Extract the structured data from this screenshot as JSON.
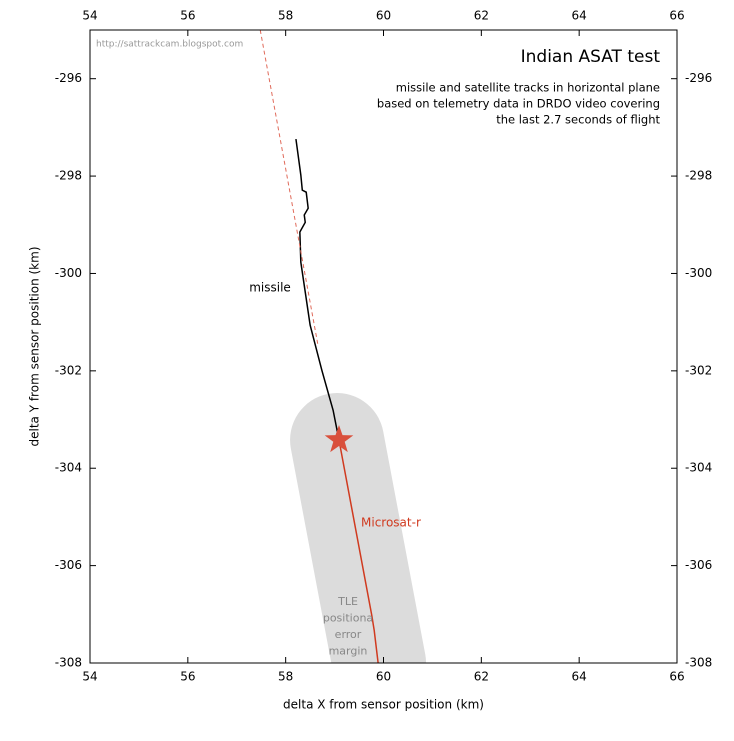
{
  "chart_data": {
    "type": "line",
    "title": "Indian ASAT test",
    "subtitle": [
      "missile and satellite tracks in horizontal plane",
      "based on telemetry data in DRDO video covering",
      "the last 2.7 seconds of flight"
    ],
    "watermark": "http://sattrackcam.blogspot.com",
    "xlabel": "delta X from sensor position (km)",
    "ylabel": "delta Y from sensor position (km)",
    "xlim": [
      54,
      66
    ],
    "xticks": [
      54,
      56,
      58,
      60,
      62,
      64,
      66
    ],
    "ylim": [
      -308,
      -295
    ],
    "yticks": [
      -296,
      -298,
      -300,
      -302,
      -304,
      -306,
      -308
    ],
    "series": [
      {
        "name": "missile",
        "color": "#000000",
        "x": [
          58.21,
          58.31,
          58.34,
          58.42,
          58.46,
          58.38,
          58.4,
          58.29,
          58.31,
          58.5,
          58.74,
          58.97,
          59.09
        ],
        "y": [
          -297.24,
          -297.98,
          -298.29,
          -298.33,
          -298.66,
          -298.8,
          -298.95,
          -299.15,
          -299.77,
          -301.06,
          -301.99,
          -302.81,
          -303.42
        ]
      },
      {
        "name": "Microsat-r",
        "color": "#d03a1f",
        "x": [
          59.09,
          59.76,
          59.81,
          59.89
        ],
        "y": [
          -303.42,
          -307.02,
          -307.33,
          -308.0
        ]
      },
      {
        "color": "#e06a5a",
        "dashed": true,
        "x": [
          57.48,
          58.66
        ],
        "y": [
          -295.0,
          -301.47
        ]
      }
    ],
    "intercept": {
      "x": 59.09,
      "y": -303.42,
      "color": "#d9503c"
    },
    "error_band": {
      "label": [
        "TLE",
        "positiona",
        "error",
        "margin"
      ],
      "color": "#dcdcdc",
      "x": [
        59.05,
        59.91
      ],
      "y": [
        -303.42,
        -308.0
      ],
      "radius": 0.96
    }
  }
}
